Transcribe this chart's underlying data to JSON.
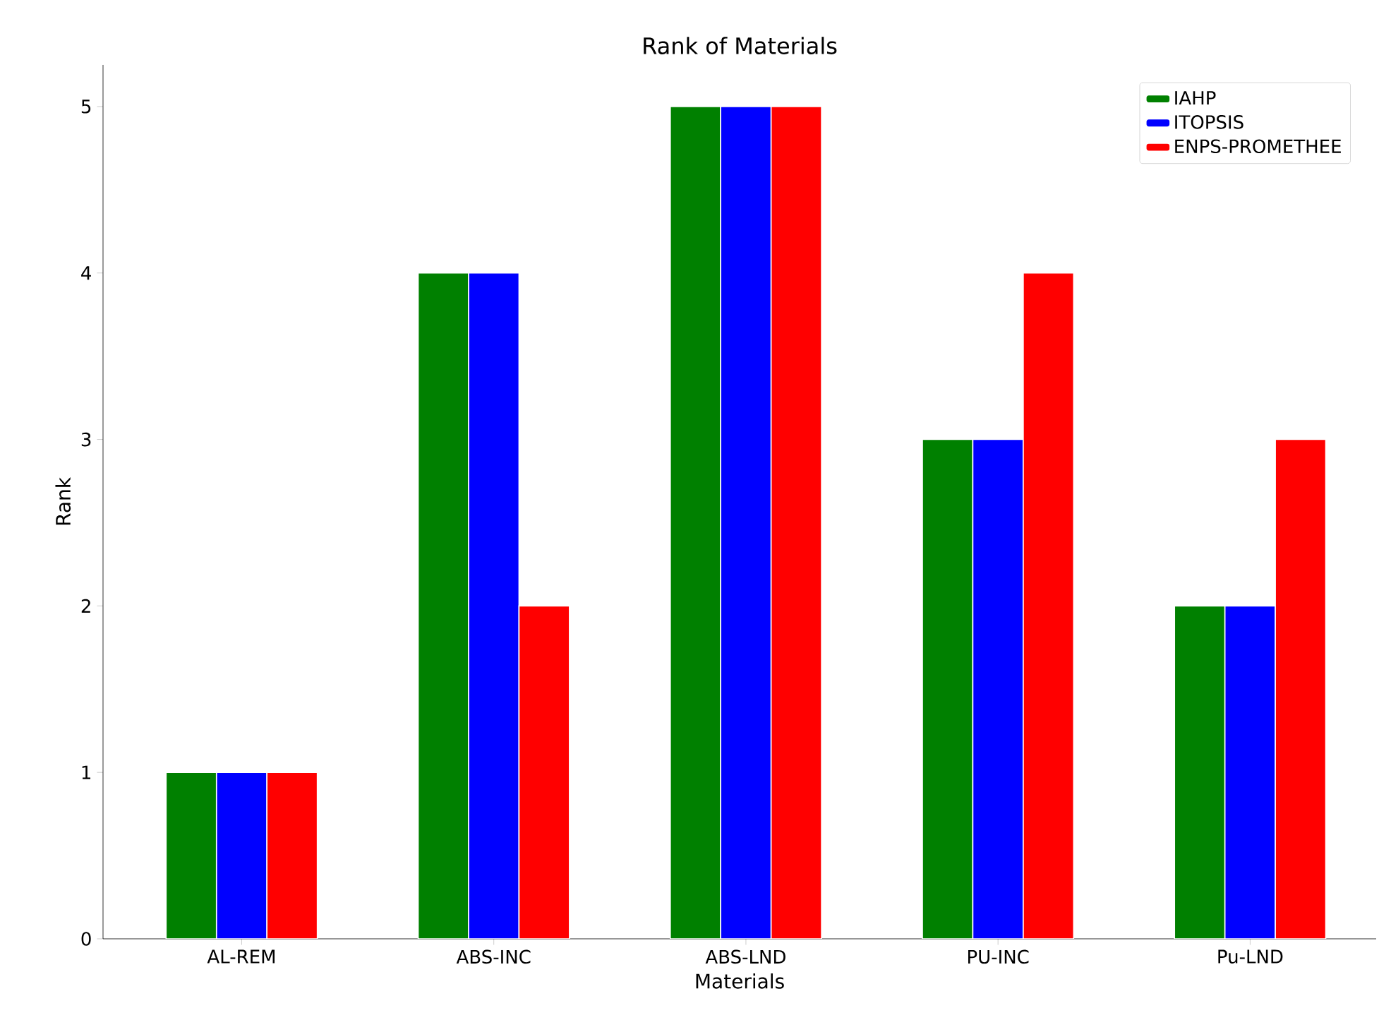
{
  "chart_data": {
    "type": "bar",
    "title": "Rank of Materials",
    "xlabel": "Materials",
    "ylabel": "Rank",
    "categories": [
      "AL-REM",
      "ABS-INC",
      "ABS-LND",
      "PU-INC",
      "Pu-LND"
    ],
    "series": [
      {
        "name": "IAHP",
        "color": "#008000",
        "values": [
          1,
          4,
          5,
          3,
          2
        ]
      },
      {
        "name": "ITOPSIS",
        "color": "#0000ff",
        "values": [
          1,
          4,
          5,
          3,
          2
        ]
      },
      {
        "name": "ENPS-PROMETHEE",
        "color": "#ff0000",
        "values": [
          1,
          2,
          5,
          4,
          3
        ]
      }
    ],
    "ylim": [
      0,
      5.25
    ],
    "yticks": [
      0,
      1,
      2,
      3,
      4,
      5
    ],
    "legend": "top right"
  }
}
